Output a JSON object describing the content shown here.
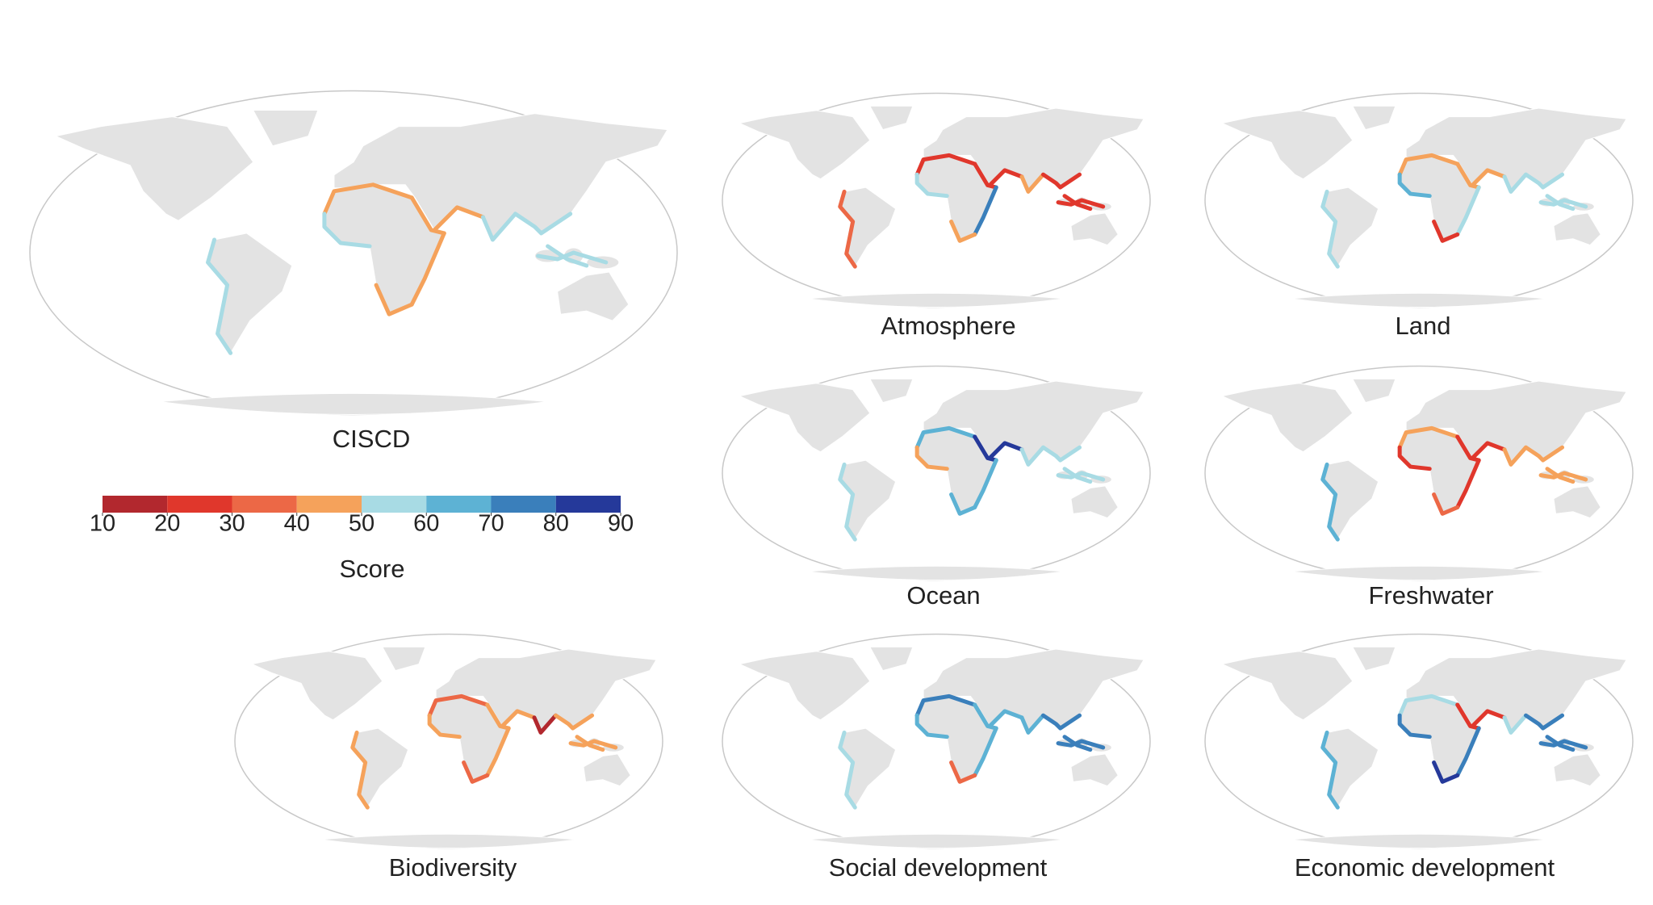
{
  "panels": {
    "main": "CISCD",
    "atmosphere": "Atmosphere",
    "land": "Land",
    "ocean": "Ocean",
    "freshwater": "Freshwater",
    "biodiversity": "Biodiversity",
    "social": "Social development",
    "economic": "Economic development"
  },
  "colorbar": {
    "label": "Score",
    "ticks": [
      10,
      20,
      30,
      40,
      50,
      60,
      70,
      80,
      90
    ],
    "colors": [
      "#b2282e",
      "#e0372c",
      "#ec6846",
      "#f5a25b",
      "#a8dbe4",
      "#5db2d4",
      "#3a7fbb",
      "#25399a"
    ]
  }
}
